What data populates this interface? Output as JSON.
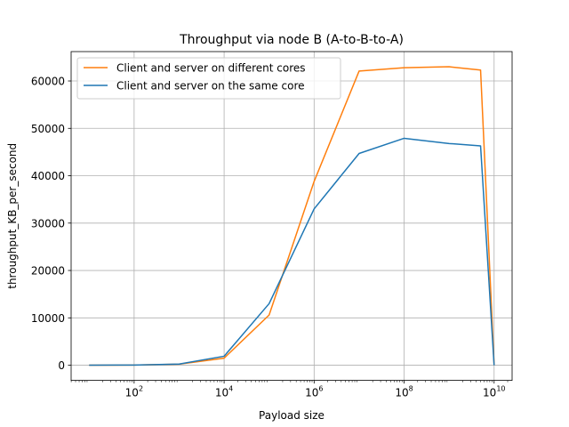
{
  "chart_data": {
    "type": "line",
    "title": "Throughput via node B (A-to-B-to-A)",
    "xlabel": "Payload size",
    "ylabel": "throughput_KB_per_second",
    "xscale": "log",
    "xlim": [
      3.98,
      25100000000
    ],
    "ylim": [
      -3200,
      66200
    ],
    "grid": true,
    "legend_position": "top-left",
    "x_ticks": [
      {
        "base": "10",
        "exp": "2",
        "value": 100
      },
      {
        "base": "10",
        "exp": "4",
        "value": 10000
      },
      {
        "base": "10",
        "exp": "6",
        "value": 1000000
      },
      {
        "base": "10",
        "exp": "8",
        "value": 100000000
      },
      {
        "base": "10",
        "exp": "10",
        "value": 10000000000
      }
    ],
    "y_ticks": [
      {
        "label": "0",
        "value": 0
      },
      {
        "label": "10000",
        "value": 10000
      },
      {
        "label": "20000",
        "value": 20000
      },
      {
        "label": "30000",
        "value": 30000
      },
      {
        "label": "40000",
        "value": 40000
      },
      {
        "label": "50000",
        "value": 50000
      },
      {
        "label": "60000",
        "value": 60000
      }
    ],
    "x": [
      10,
      100,
      1000,
      10000,
      100000,
      1000000,
      10000000,
      100000000,
      1000000000,
      5000000000,
      10000000000
    ],
    "series": [
      {
        "name": "Client and server on different cores",
        "color": "#ff7f0e",
        "values": [
          10,
          30,
          220,
          1500,
          10600,
          38800,
          62100,
          62800,
          63000,
          62300,
          0
        ]
      },
      {
        "name": "Client and server on the same core",
        "color": "#1f77b4",
        "values": [
          10,
          40,
          250,
          1900,
          13000,
          33000,
          44700,
          47900,
          46800,
          46300,
          0
        ]
      }
    ]
  }
}
